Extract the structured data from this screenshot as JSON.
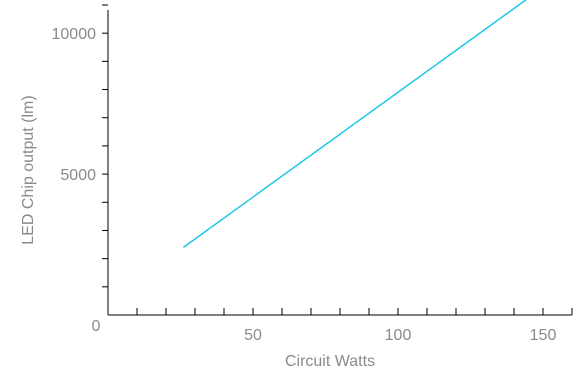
{
  "chart_data": {
    "type": "line",
    "xlabel": "Circuit Watts",
    "ylabel": "LED Chip output (lm)",
    "xlim": [
      0,
      160
    ],
    "ylim": [
      0,
      11000
    ],
    "x_ticks": [
      0,
      50,
      100,
      150
    ],
    "y_ticks": [
      0,
      5000,
      10000
    ],
    "x_minor_step": 10,
    "y_minor_step": 1000,
    "grid": false,
    "series": [
      {
        "color": "#1ec8e6",
        "points": [
          [
            26,
            2400
          ],
          [
            145,
            11250
          ]
        ]
      }
    ]
  }
}
